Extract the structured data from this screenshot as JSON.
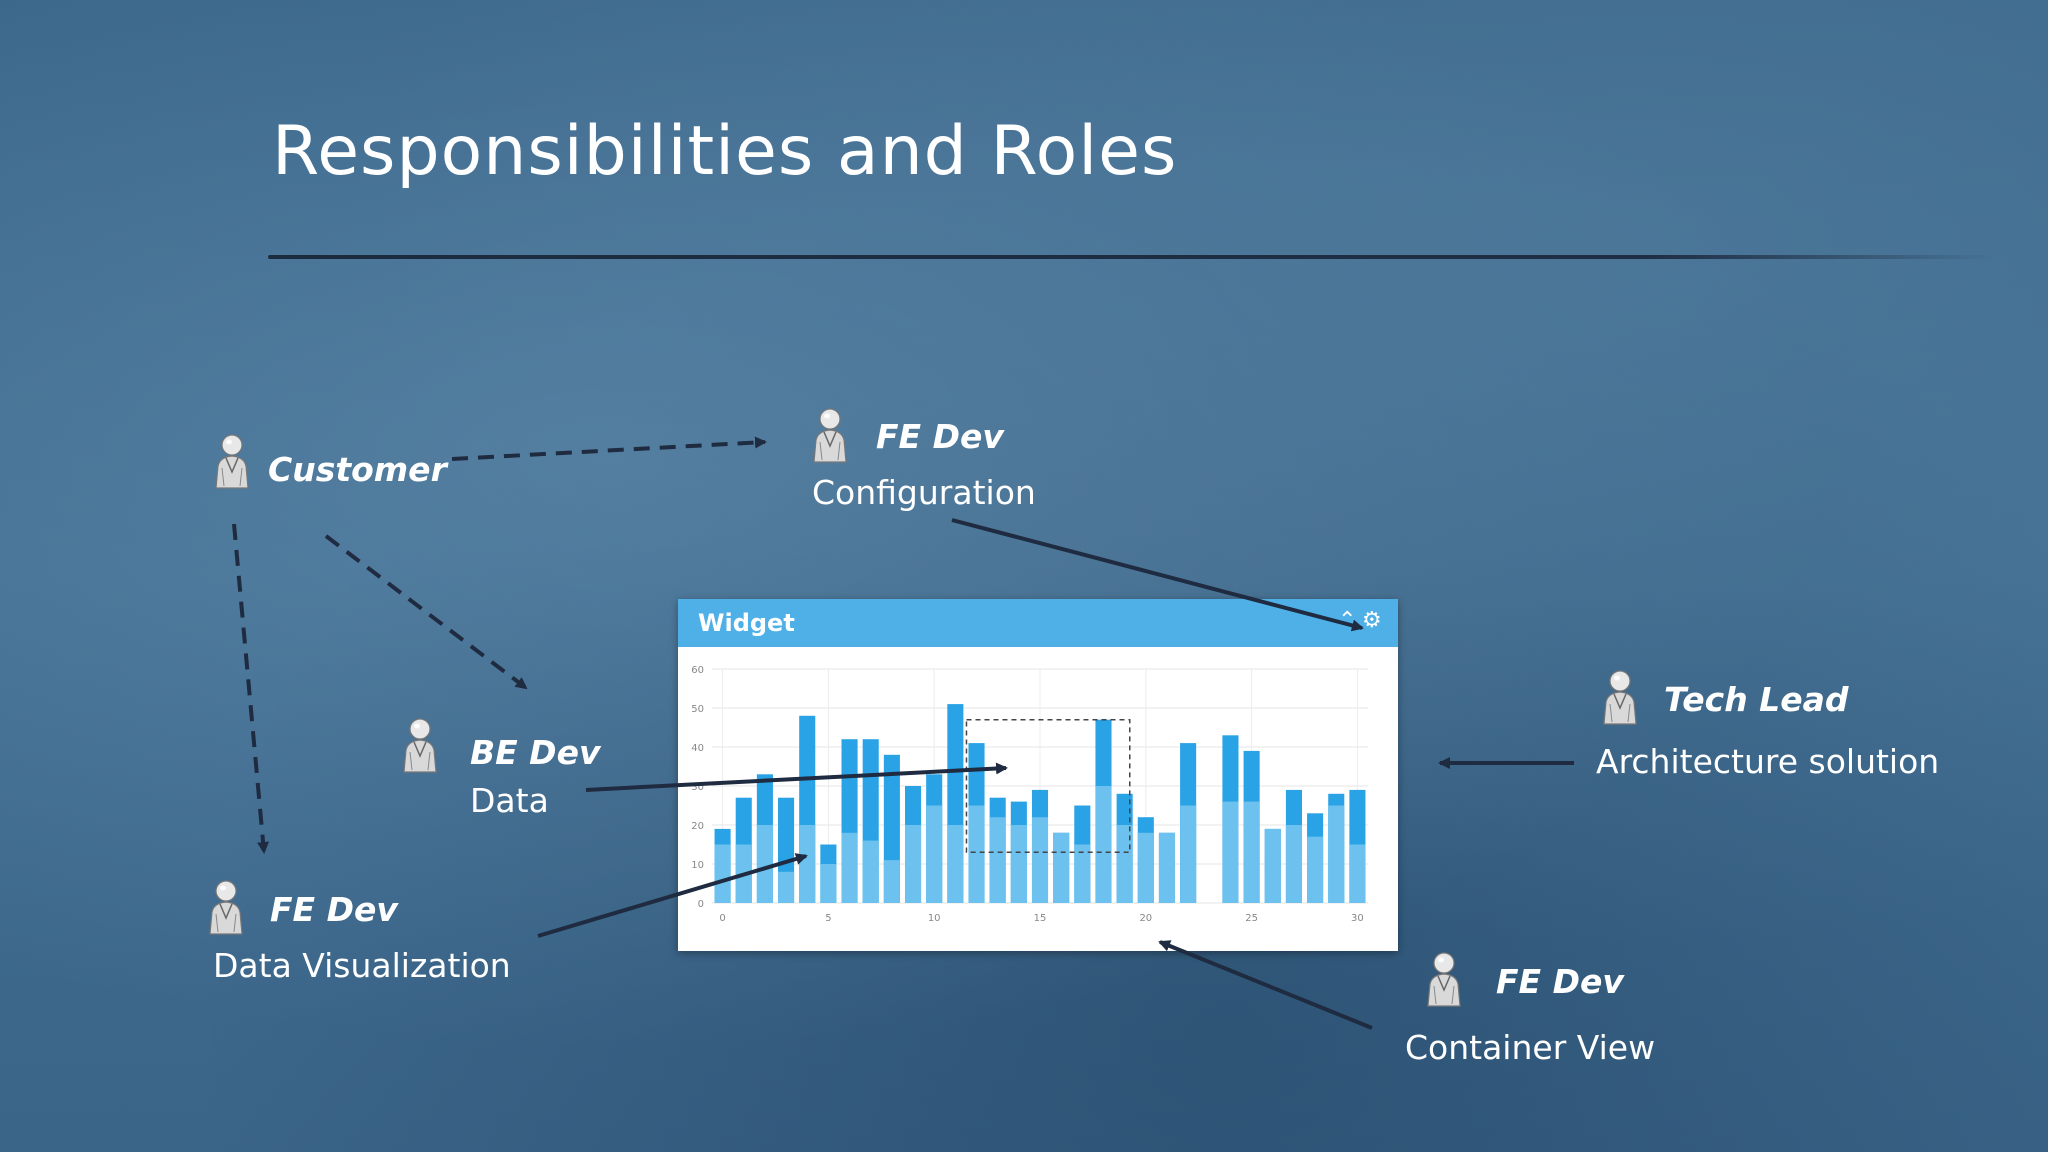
{
  "slide": {
    "title": "Responsibilities and Roles"
  },
  "roles": {
    "customer": {
      "name": "Customer"
    },
    "fe_config": {
      "name": "FE Dev",
      "task": "Configuration"
    },
    "be_data": {
      "name": "BE Dev",
      "task": "Data"
    },
    "fe_dataviz": {
      "name": "FE Dev",
      "task": "Data Visualization"
    },
    "tech_lead": {
      "name": "Tech Lead",
      "task": "Architecture solution"
    },
    "fe_container": {
      "name": "FE Dev",
      "task": "Container View"
    }
  },
  "widget": {
    "title": "Widget",
    "icons": [
      "collapse-icon",
      "gear-icon"
    ]
  },
  "colors": {
    "board": "#3d6a8e",
    "widget_header": "#4fb0e8",
    "bar_dark": "#29a3e5",
    "bar_light": "#6cc1ee",
    "arrow": "#1e2b40"
  },
  "chart_data": {
    "type": "bar",
    "x": [
      0,
      1,
      2,
      3,
      4,
      5,
      6,
      7,
      8,
      9,
      10,
      11,
      12,
      13,
      14,
      15,
      16,
      17,
      18,
      19,
      20,
      21,
      22,
      23,
      24,
      25,
      26,
      27,
      28,
      29,
      30
    ],
    "series": [
      {
        "values": [
          19,
          27,
          33,
          27,
          48,
          15,
          42,
          42,
          38,
          30,
          33,
          51,
          41,
          27,
          26,
          29,
          18,
          25,
          47,
          28,
          22,
          18,
          41,
          null,
          43,
          39,
          19,
          29,
          23,
          28,
          29
        ]
      },
      {
        "values": [
          15,
          15,
          20,
          8,
          20,
          10,
          18,
          16,
          11,
          20,
          25,
          20,
          25,
          22,
          20,
          22,
          18,
          15,
          30,
          20,
          18,
          18,
          25,
          null,
          26,
          26,
          19,
          20,
          17,
          25,
          15
        ]
      }
    ],
    "xticks": [
      0,
      5,
      10,
      15,
      20,
      25,
      30
    ],
    "yticks": [
      0,
      10,
      20,
      30,
      40,
      50,
      60
    ],
    "ylim": [
      0,
      60
    ],
    "grid": true
  }
}
